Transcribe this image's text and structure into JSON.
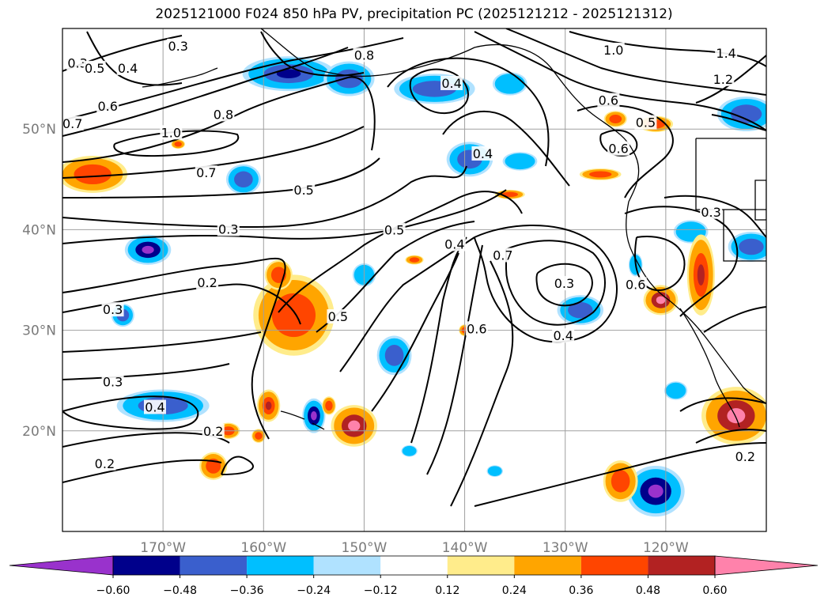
{
  "title": "2025121000 F024 850 hPa PV, precipitation PC (2025121212 - 2025121312)",
  "map": {
    "projection": "PlateCarree",
    "lon_range": [
      -180,
      -110
    ],
    "lat_range": [
      10,
      60
    ],
    "gridlines": true,
    "lon_ticks": [
      {
        "lon": -170,
        "label": "170°W"
      },
      {
        "lon": -160,
        "label": "160°W"
      },
      {
        "lon": -150,
        "label": "150°W"
      },
      {
        "lon": -140,
        "label": "140°W"
      },
      {
        "lon": -130,
        "label": "130°W"
      },
      {
        "lon": -120,
        "label": "120°W"
      }
    ],
    "lat_ticks": [
      {
        "lat": 20,
        "label": "20°N"
      },
      {
        "lat": 30,
        "label": "30°N"
      },
      {
        "lat": 40,
        "label": "40°N"
      },
      {
        "lat": 50,
        "label": "50°N"
      }
    ],
    "contour_labels": [
      {
        "text": "0.3",
        "lon": -178.5,
        "lat": 56.5
      },
      {
        "text": "0.5",
        "lon": -176.8,
        "lat": 56.0
      },
      {
        "text": "0.4",
        "lon": -173.5,
        "lat": 56.0
      },
      {
        "text": "0.3",
        "lon": -168.5,
        "lat": 58.2
      },
      {
        "text": "0.6",
        "lon": -175.5,
        "lat": 52.2
      },
      {
        "text": "0.7",
        "lon": -179.0,
        "lat": 50.5
      },
      {
        "text": "1.0",
        "lon": -169.2,
        "lat": 49.6
      },
      {
        "text": "0.8",
        "lon": -164.0,
        "lat": 51.4
      },
      {
        "text": "0.8",
        "lon": -150.0,
        "lat": 57.3
      },
      {
        "text": "0.4",
        "lon": -141.3,
        "lat": 54.5
      },
      {
        "text": "0.4",
        "lon": -138.2,
        "lat": 47.5
      },
      {
        "text": "1.0",
        "lon": -125.2,
        "lat": 57.8
      },
      {
        "text": "1.4",
        "lon": -114.0,
        "lat": 57.5
      },
      {
        "text": "1.2",
        "lon": -114.3,
        "lat": 54.9
      },
      {
        "text": "0.6",
        "lon": -125.7,
        "lat": 52.8
      },
      {
        "text": "0.5",
        "lon": -122.0,
        "lat": 50.6
      },
      {
        "text": "0.6",
        "lon": -124.7,
        "lat": 48.0
      },
      {
        "text": "0.7",
        "lon": -165.7,
        "lat": 45.6
      },
      {
        "text": "0.5",
        "lon": -156.0,
        "lat": 43.9
      },
      {
        "text": "0.5",
        "lon": -147.0,
        "lat": 39.9
      },
      {
        "text": "0.4",
        "lon": -141.0,
        "lat": 38.5
      },
      {
        "text": "0.7",
        "lon": -136.2,
        "lat": 37.4
      },
      {
        "text": "0.3",
        "lon": -130.1,
        "lat": 34.6
      },
      {
        "text": "0.3",
        "lon": -163.5,
        "lat": 40.0
      },
      {
        "text": "0.2",
        "lon": -165.6,
        "lat": 34.7
      },
      {
        "text": "0.3",
        "lon": -175.0,
        "lat": 32.0
      },
      {
        "text": "0.5",
        "lon": -152.6,
        "lat": 31.3
      },
      {
        "text": "0.6",
        "lon": -138.8,
        "lat": 30.1
      },
      {
        "text": "0.4",
        "lon": -130.2,
        "lat": 29.4
      },
      {
        "text": "0.6",
        "lon": -123.0,
        "lat": 34.5
      },
      {
        "text": "0.3",
        "lon": -115.5,
        "lat": 41.7
      },
      {
        "text": "0.3",
        "lon": -175.0,
        "lat": 24.8
      },
      {
        "text": "0.4",
        "lon": -170.8,
        "lat": 22.3
      },
      {
        "text": "0.2",
        "lon": -165.0,
        "lat": 19.9
      },
      {
        "text": "0.2",
        "lon": -175.8,
        "lat": 16.7
      },
      {
        "text": "0.2",
        "lon": -112.1,
        "lat": 17.4
      }
    ]
  },
  "colorbar": {
    "ticks": [
      "−0.60",
      "−0.48",
      "−0.36",
      "−0.24",
      "−0.12",
      "0.12",
      "0.24",
      "0.36",
      "0.48",
      "0.60"
    ],
    "colors": [
      "#9932CC",
      "#00008B",
      "#3A5FCD",
      "#00BFFF",
      "#B0E2FF",
      "#FFFFFF",
      "#FFEC8B",
      "#FFA500",
      "#FF4500",
      "#B22222",
      "#FF82AB"
    ]
  },
  "chart_data": {
    "type": "heatmap",
    "title": "2025121000 F024 850 hPa PV, precipitation PC (2025121212 - 2025121312)",
    "xlabel": "",
    "ylabel": "",
    "xlim": [
      -180,
      -110
    ],
    "ylim": [
      10,
      60
    ],
    "levels": [
      -0.6,
      -0.48,
      -0.36,
      -0.24,
      -0.12,
      0.12,
      0.24,
      0.36,
      0.48,
      0.6
    ],
    "precip_cells": [
      {
        "lon": -171.5,
        "lat": 38.0,
        "rx": 2.0,
        "ry": 1.3,
        "value": -0.55
      },
      {
        "lon": -162.0,
        "lat": 45.0,
        "rx": 1.5,
        "ry": 1.3,
        "value": -0.4
      },
      {
        "lon": -174.0,
        "lat": 31.5,
        "rx": 1.0,
        "ry": 1.0,
        "value": -0.4
      },
      {
        "lon": -170.0,
        "lat": 22.5,
        "rx": 4.0,
        "ry": 1.4,
        "value": -0.4
      },
      {
        "lon": -157.5,
        "lat": 55.5,
        "rx": 4.0,
        "ry": 1.5,
        "value": -0.45
      },
      {
        "lon": -151.5,
        "lat": 55.0,
        "rx": 2.2,
        "ry": 1.5,
        "value": -0.4
      },
      {
        "lon": -143.0,
        "lat": 54.0,
        "rx": 3.5,
        "ry": 1.3,
        "value": -0.4
      },
      {
        "lon": -135.5,
        "lat": 54.5,
        "rx": 1.5,
        "ry": 1.0,
        "value": -0.36
      },
      {
        "lon": -139.5,
        "lat": 47.0,
        "rx": 2.0,
        "ry": 1.5,
        "value": -0.4
      },
      {
        "lon": -134.5,
        "lat": 46.8,
        "rx": 1.5,
        "ry": 0.8,
        "value": -0.36
      },
      {
        "lon": -150.0,
        "lat": 35.5,
        "rx": 1.0,
        "ry": 1.0,
        "value": -0.36
      },
      {
        "lon": -147.0,
        "lat": 27.5,
        "rx": 1.5,
        "ry": 1.7,
        "value": -0.4
      },
      {
        "lon": -155.0,
        "lat": 21.5,
        "rx": 1.0,
        "ry": 1.5,
        "value": -0.55
      },
      {
        "lon": -128.5,
        "lat": 32.0,
        "rx": 2.0,
        "ry": 1.3,
        "value": -0.4
      },
      {
        "lon": -123.0,
        "lat": 36.5,
        "rx": 0.6,
        "ry": 1.0,
        "value": -0.36
      },
      {
        "lon": -117.5,
        "lat": 39.8,
        "rx": 1.5,
        "ry": 1.0,
        "value": -0.36
      },
      {
        "lon": -111.5,
        "lat": 38.3,
        "rx": 2.0,
        "ry": 1.3,
        "value": -0.4
      },
      {
        "lon": -112.0,
        "lat": 51.5,
        "rx": 2.5,
        "ry": 1.5,
        "value": -0.4
      },
      {
        "lon": -121.0,
        "lat": 14.0,
        "rx": 2.5,
        "ry": 2.2,
        "value": -0.55
      },
      {
        "lon": -119.0,
        "lat": 24.0,
        "rx": 1.0,
        "ry": 0.8,
        "value": -0.36
      },
      {
        "lon": -145.5,
        "lat": 18.0,
        "rx": 0.7,
        "ry": 0.5,
        "value": -0.36
      },
      {
        "lon": -137.0,
        "lat": 16.0,
        "rx": 0.7,
        "ry": 0.5,
        "value": -0.36
      },
      {
        "lon": -177.0,
        "lat": 45.5,
        "rx": 3.0,
        "ry": 1.6,
        "value": 0.4
      },
      {
        "lon": -157.0,
        "lat": 31.5,
        "rx": 3.5,
        "ry": 3.5,
        "value": 0.42
      },
      {
        "lon": -158.5,
        "lat": 35.5,
        "rx": 1.2,
        "ry": 1.3,
        "value": 0.4
      },
      {
        "lon": -159.5,
        "lat": 22.5,
        "rx": 1.0,
        "ry": 1.4,
        "value": 0.45
      },
      {
        "lon": -151.0,
        "lat": 20.5,
        "rx": 2.0,
        "ry": 1.8,
        "value": 0.5
      },
      {
        "lon": -153.5,
        "lat": 22.5,
        "rx": 0.6,
        "ry": 0.8,
        "value": 0.4
      },
      {
        "lon": -165.0,
        "lat": 16.5,
        "rx": 1.2,
        "ry": 1.2,
        "value": 0.4
      },
      {
        "lon": -163.5,
        "lat": 20.0,
        "rx": 1.0,
        "ry": 0.7,
        "value": 0.4
      },
      {
        "lon": -160.5,
        "lat": 19.5,
        "rx": 0.6,
        "ry": 0.6,
        "value": 0.4
      },
      {
        "lon": -124.5,
        "lat": 15.0,
        "rx": 1.5,
        "ry": 1.8,
        "value": 0.4
      },
      {
        "lon": -113.0,
        "lat": 21.5,
        "rx": 3.0,
        "ry": 2.5,
        "value": 0.5
      },
      {
        "lon": -120.5,
        "lat": 33.0,
        "rx": 1.5,
        "ry": 1.3,
        "value": 0.5
      },
      {
        "lon": -116.5,
        "lat": 35.5,
        "rx": 1.2,
        "ry": 3.5,
        "value": 0.45
      },
      {
        "lon": -125.0,
        "lat": 51.0,
        "rx": 1.0,
        "ry": 0.7,
        "value": 0.4
      },
      {
        "lon": -121.0,
        "lat": 50.5,
        "rx": 1.5,
        "ry": 0.7,
        "value": 0.4
      },
      {
        "lon": -126.5,
        "lat": 45.5,
        "rx": 1.8,
        "ry": 0.5,
        "value": 0.36
      },
      {
        "lon": -135.5,
        "lat": 43.5,
        "rx": 1.3,
        "ry": 0.4,
        "value": 0.36
      },
      {
        "lon": -145.0,
        "lat": 37.0,
        "rx": 0.8,
        "ry": 0.4,
        "value": 0.36
      },
      {
        "lon": -140.0,
        "lat": 30.0,
        "rx": 0.5,
        "ry": 0.5,
        "value": 0.36
      },
      {
        "lon": -168.5,
        "lat": 48.5,
        "rx": 0.6,
        "ry": 0.4,
        "value": 0.36
      }
    ]
  }
}
